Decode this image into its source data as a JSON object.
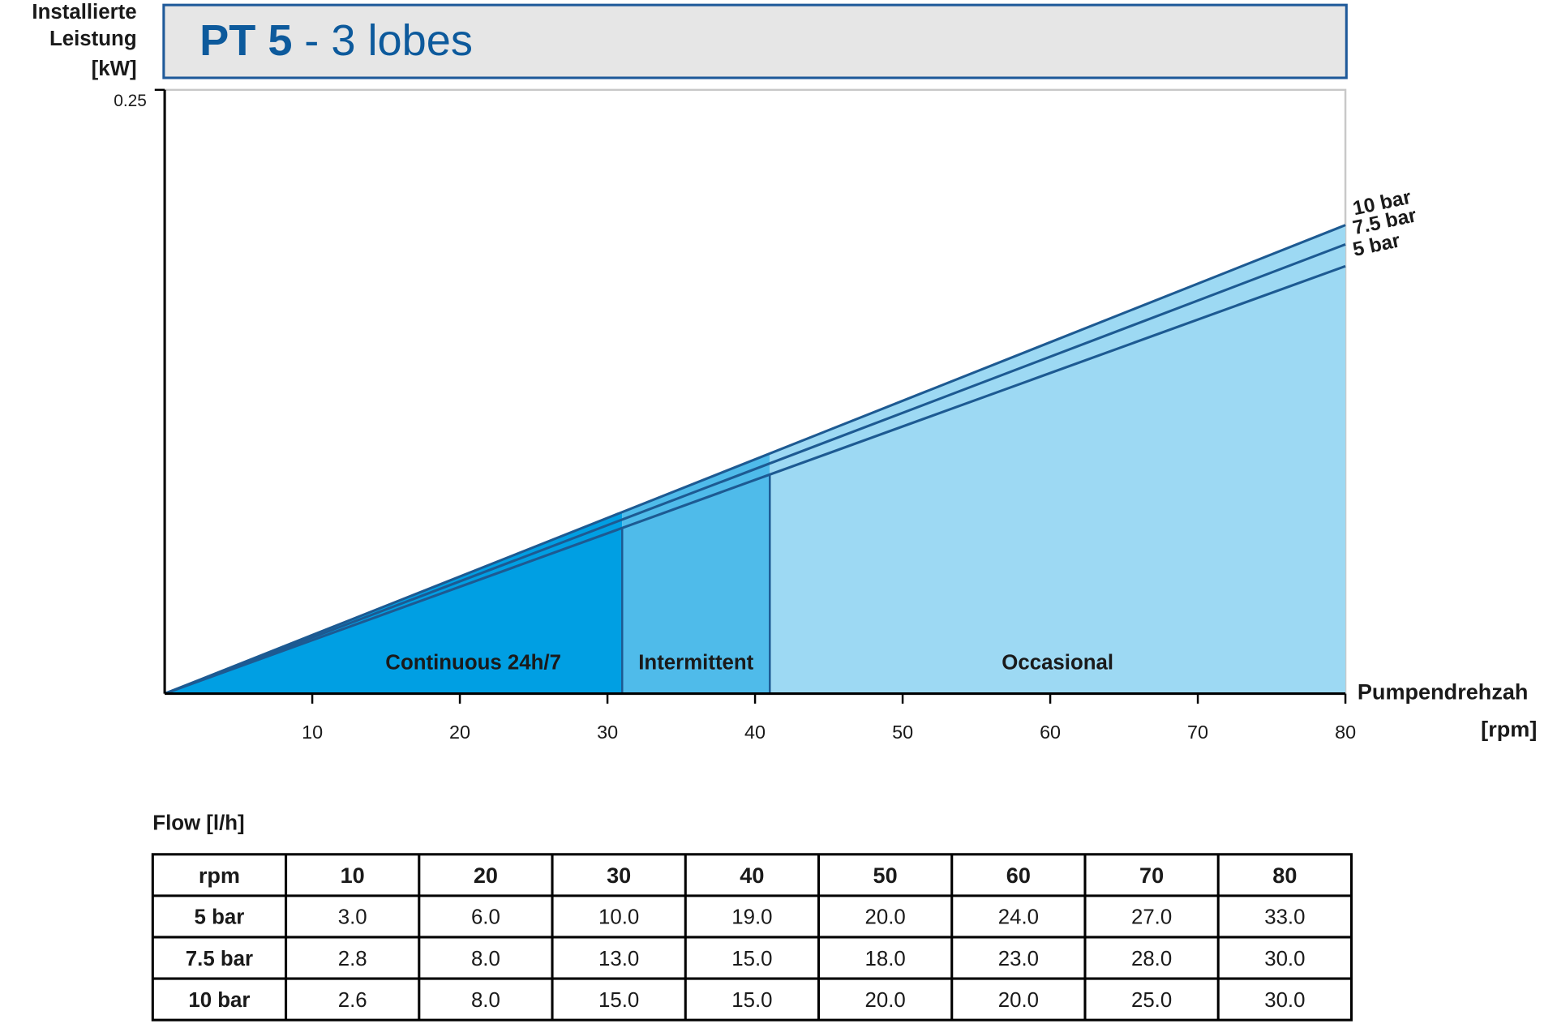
{
  "chart_data": {
    "type": "line",
    "title_bold": "PT 5",
    "title_rest": "- 3 lobes",
    "ylabel": [
      "Installierte",
      "Leistung",
      "[kW]"
    ],
    "xlabel": [
      "Pumpendrehzah",
      "[rpm]"
    ],
    "x": [
      0,
      80
    ],
    "series": [
      {
        "name": "10 bar",
        "color": "#1d5a92",
        "values": [
          0,
          0.194
        ]
      },
      {
        "name": "7.5 bar",
        "color": "#1d5a92",
        "values": [
          0,
          0.186
        ]
      },
      {
        "name": "5 bar",
        "color": "#1d5a92",
        "values": [
          0,
          0.177
        ]
      }
    ],
    "regions": [
      {
        "label": "Continuous 24h/7",
        "from": 0,
        "to": 31,
        "color": "#009fe3"
      },
      {
        "label": "Intermittent",
        "from": 31,
        "to": 41,
        "color": "#4fbbea"
      },
      {
        "label": "Occasional",
        "from": 41,
        "to": 80,
        "color": "#9dd9f3"
      }
    ],
    "xlim": [
      0,
      80
    ],
    "xticks": [
      10,
      20,
      30,
      40,
      50,
      60,
      70,
      80
    ],
    "ylim": [
      0,
      0.25
    ],
    "yticks": [
      0.25
    ]
  },
  "table": {
    "caption": "Flow [l/h]",
    "header": [
      "rpm",
      "10",
      "20",
      "30",
      "40",
      "50",
      "60",
      "70",
      "80"
    ],
    "rows": [
      [
        "5 bar",
        "3.0",
        "6.0",
        "10.0",
        "19.0",
        "20.0",
        "24.0",
        "27.0",
        "33.0"
      ],
      [
        "7.5 bar",
        "2.8",
        "8.0",
        "13.0",
        "15.0",
        "18.0",
        "23.0",
        "28.0",
        "30.0"
      ],
      [
        "10 bar",
        "2.6",
        "8.0",
        "15.0",
        "15.0",
        "20.0",
        "20.0",
        "25.0",
        "30.0"
      ]
    ]
  }
}
